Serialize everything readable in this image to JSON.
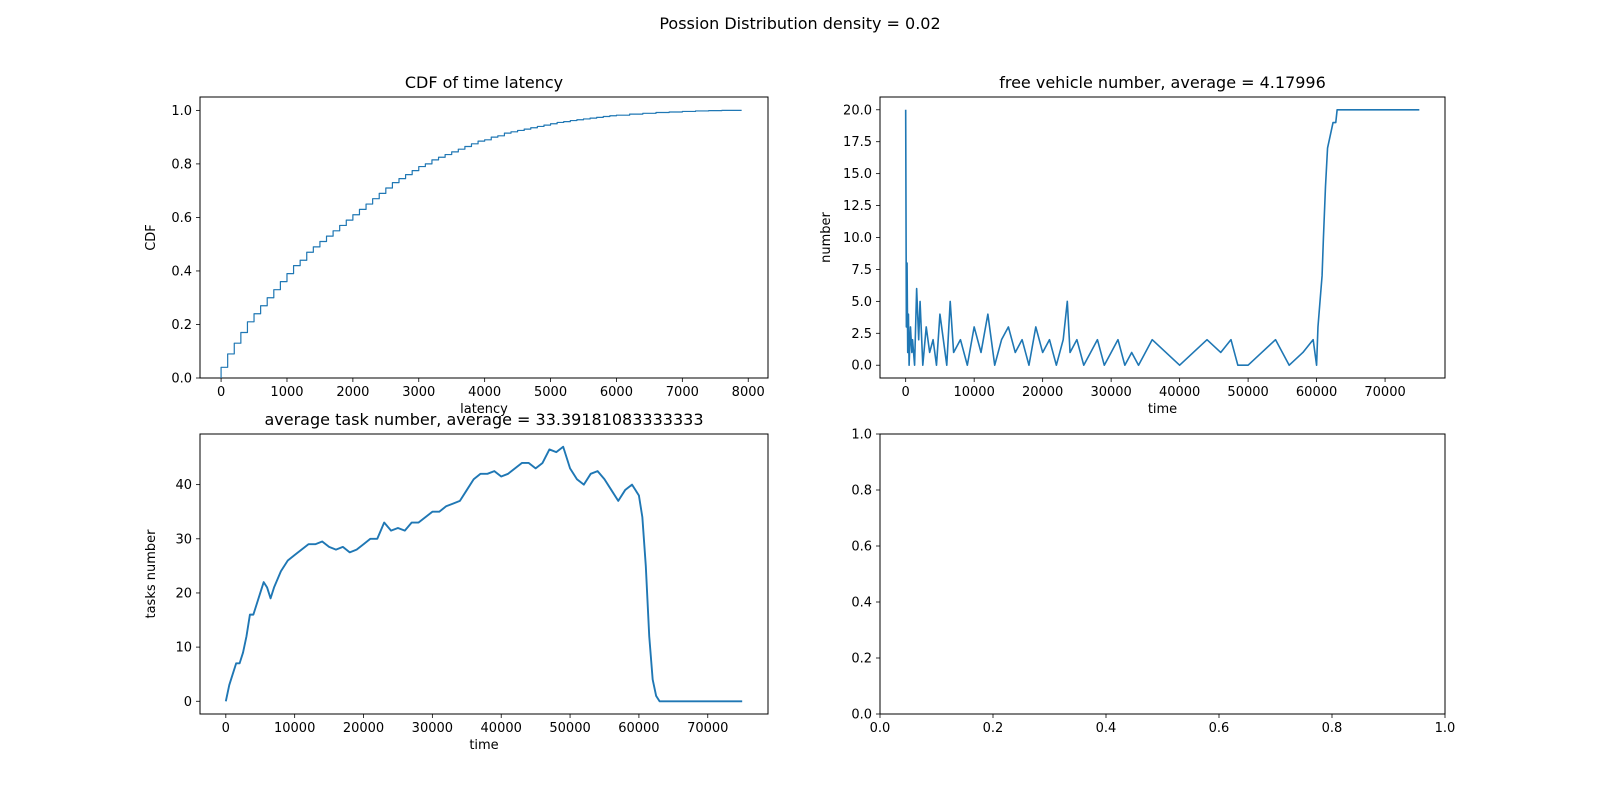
{
  "figure": {
    "suptitle": "Possion Distribution density = 0.02"
  },
  "colors": {
    "line": "#1f77b4",
    "axes": "#000000",
    "background": "#ffffff"
  },
  "chart_data": [
    {
      "id": "cdf",
      "type": "step",
      "title": "CDF of time latency",
      "xlabel": "latency",
      "ylabel": "CDF",
      "xlim": [
        -320,
        8300
      ],
      "ylim": [
        0,
        1.05
      ],
      "xticks": [
        0,
        1000,
        2000,
        3000,
        4000,
        5000,
        6000,
        7000,
        8000
      ],
      "yticks": [
        0.0,
        0.2,
        0.4,
        0.6,
        0.8,
        1.0
      ],
      "xtick_labels": [
        "0",
        "1000",
        "2000",
        "3000",
        "4000",
        "5000",
        "6000",
        "7000",
        "8000"
      ],
      "ytick_labels": [
        "0.0",
        "0.2",
        "0.4",
        "0.6",
        "0.8",
        "1.0"
      ],
      "series": [
        {
          "x": [
            0,
            100,
            200,
            300,
            400,
            500,
            600,
            700,
            800,
            900,
            1000,
            1100,
            1200,
            1300,
            1400,
            1500,
            1600,
            1700,
            1800,
            1900,
            2000,
            2100,
            2200,
            2300,
            2400,
            2500,
            2600,
            2700,
            2800,
            2900,
            3000,
            3100,
            3200,
            3300,
            3400,
            3500,
            3600,
            3700,
            3800,
            3900,
            4000,
            4100,
            4200,
            4300,
            4400,
            4500,
            4600,
            4700,
            4800,
            4900,
            5000,
            5100,
            5200,
            5300,
            5400,
            5500,
            5600,
            5700,
            5800,
            5900,
            6000,
            6200,
            6400,
            6600,
            6800,
            7000,
            7200,
            7400,
            7600,
            7900
          ],
          "y": [
            0.04,
            0.09,
            0.13,
            0.17,
            0.21,
            0.24,
            0.27,
            0.3,
            0.33,
            0.36,
            0.39,
            0.42,
            0.44,
            0.47,
            0.49,
            0.51,
            0.53,
            0.55,
            0.57,
            0.59,
            0.61,
            0.63,
            0.65,
            0.67,
            0.69,
            0.71,
            0.73,
            0.745,
            0.76,
            0.775,
            0.79,
            0.8,
            0.815,
            0.825,
            0.835,
            0.845,
            0.855,
            0.865,
            0.875,
            0.885,
            0.89,
            0.9,
            0.905,
            0.915,
            0.92,
            0.925,
            0.93,
            0.935,
            0.94,
            0.945,
            0.95,
            0.955,
            0.958,
            0.962,
            0.965,
            0.968,
            0.971,
            0.974,
            0.977,
            0.98,
            0.982,
            0.986,
            0.989,
            0.992,
            0.994,
            0.996,
            0.998,
            0.999,
            1.0,
            1.0
          ]
        }
      ]
    },
    {
      "id": "free",
      "type": "line",
      "title": "free vehicle number, average = 4.17996",
      "xlabel": "time",
      "ylabel": "number",
      "xlim": [
        -3750,
        78750
      ],
      "ylim": [
        -1,
        21
      ],
      "xticks": [
        0,
        10000,
        20000,
        30000,
        40000,
        50000,
        60000,
        70000
      ],
      "yticks": [
        0.0,
        2.5,
        5.0,
        7.5,
        10.0,
        12.5,
        15.0,
        17.5,
        20.0
      ],
      "xtick_labels": [
        "0",
        "10000",
        "20000",
        "30000",
        "40000",
        "50000",
        "60000",
        "70000"
      ],
      "ytick_labels": [
        "0.0",
        "2.5",
        "5.0",
        "7.5",
        "10.0",
        "12.5",
        "15.0",
        "17.5",
        "20.0"
      ],
      "series": [
        {
          "x": [
            0,
            100,
            200,
            300,
            400,
            500,
            700,
            900,
            1000,
            1300,
            1600,
            1900,
            2100,
            2500,
            3000,
            3500,
            4000,
            4500,
            5000,
            6000,
            6500,
            7000,
            8000,
            9000,
            10000,
            11000,
            12000,
            13000,
            14000,
            15000,
            16000,
            17000,
            18000,
            19000,
            20000,
            21000,
            22000,
            23000,
            23600,
            24000,
            25000,
            26000,
            27000,
            28000,
            29000,
            30000,
            31000,
            32000,
            33000,
            34000,
            36000,
            38000,
            40000,
            42000,
            44000,
            46000,
            47500,
            48500,
            50000,
            52000,
            54000,
            56000,
            58000,
            59500,
            60000,
            60200,
            60500,
            60800,
            61000,
            61300,
            61600,
            62000,
            62400,
            62800,
            63000,
            63500,
            75000
          ],
          "y": [
            20,
            3,
            8,
            1,
            4,
            0,
            3,
            1,
            2,
            0,
            6,
            2,
            5,
            0,
            3,
            1,
            2,
            0,
            4,
            0,
            5,
            1,
            2,
            0,
            3,
            1,
            4,
            0,
            2,
            3,
            1,
            2,
            0,
            3,
            1,
            2,
            0,
            2,
            5,
            1,
            2,
            0,
            1,
            2,
            0,
            1,
            2,
            0,
            1,
            0,
            2,
            1,
            0,
            1,
            2,
            1,
            2,
            0,
            0,
            1,
            2,
            0,
            1,
            2,
            0,
            3,
            5,
            7,
            10,
            14,
            17,
            18,
            19,
            19,
            20,
            20,
            20
          ]
        }
      ]
    },
    {
      "id": "task",
      "type": "line",
      "title": "average task number, average = 33.39181083333333",
      "xlabel": "time",
      "ylabel": "tasks number",
      "xlim": [
        -3750,
        78750
      ],
      "ylim": [
        -2.35,
        49.35
      ],
      "xticks": [
        0,
        10000,
        20000,
        30000,
        40000,
        50000,
        60000,
        70000
      ],
      "yticks": [
        0,
        10,
        20,
        30,
        40
      ],
      "xtick_labels": [
        "0",
        "10000",
        "20000",
        "30000",
        "40000",
        "50000",
        "60000",
        "70000"
      ],
      "ytick_labels": [
        "0",
        "10",
        "20",
        "30",
        "40"
      ],
      "series": [
        {
          "x": [
            0,
            500,
            1000,
            1500,
            2000,
            2500,
            3000,
            3500,
            4000,
            5000,
            5500,
            6000,
            6500,
            7000,
            8000,
            9000,
            10000,
            11000,
            12000,
            13000,
            14000,
            15000,
            16000,
            17000,
            18000,
            19000,
            20000,
            21000,
            22000,
            23000,
            24000,
            25000,
            26000,
            27000,
            28000,
            29000,
            30000,
            31000,
            32000,
            33000,
            34000,
            35000,
            36000,
            37000,
            38000,
            39000,
            40000,
            41000,
            42000,
            43000,
            44000,
            45000,
            46000,
            47000,
            48000,
            49000,
            50000,
            51000,
            52000,
            53000,
            54000,
            55000,
            56000,
            57000,
            58000,
            59000,
            60000,
            60500,
            61000,
            61500,
            62000,
            62500,
            63000,
            75000
          ],
          "y": [
            0,
            3,
            5,
            7,
            7,
            9,
            12,
            16,
            16,
            20,
            22,
            21,
            19,
            21,
            24,
            26,
            27,
            28,
            29,
            29,
            29.5,
            28.5,
            28,
            28.5,
            27.5,
            28,
            29,
            30,
            30,
            33,
            31.5,
            32,
            31.5,
            33,
            33,
            34,
            35,
            35,
            36,
            36.5,
            37,
            39,
            41,
            42,
            42,
            42.5,
            41.5,
            42,
            43,
            44,
            44,
            43,
            44,
            46.5,
            46,
            47,
            43,
            41,
            40,
            42,
            42.5,
            41,
            39,
            37,
            39,
            40,
            38,
            34,
            25,
            12,
            4,
            1,
            0,
            0
          ]
        }
      ]
    },
    {
      "id": "empty",
      "type": "line",
      "title": "",
      "xlabel": "",
      "ylabel": "",
      "xlim": [
        0,
        1
      ],
      "ylim": [
        0,
        1
      ],
      "xticks": [
        0.0,
        0.2,
        0.4,
        0.6,
        0.8,
        1.0
      ],
      "yticks": [
        0.0,
        0.2,
        0.4,
        0.6,
        0.8,
        1.0
      ],
      "xtick_labels": [
        "0.0",
        "0.2",
        "0.4",
        "0.6",
        "0.8",
        "1.0"
      ],
      "ytick_labels": [
        "0.0",
        "0.2",
        "0.4",
        "0.6",
        "0.8",
        "1.0"
      ],
      "series": []
    }
  ]
}
